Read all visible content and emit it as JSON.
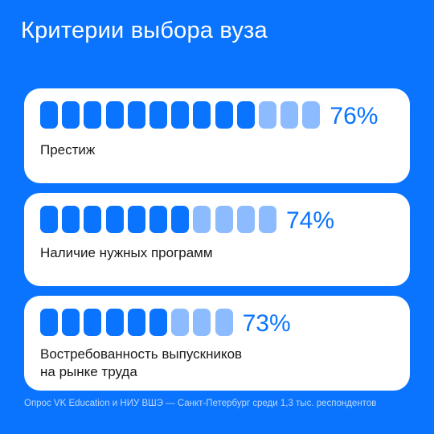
{
  "title": "Критерии выбора вуза",
  "colors": {
    "background": "#0a74ff",
    "bar_strong": "#0a74ff",
    "bar_light": "#8cbbff",
    "percent_text": "#0a74ff"
  },
  "chart_data": {
    "type": "bar",
    "categories": [
      "Престиж",
      "Наличие нужных программ",
      "Востребованность выпускников на рынке труда"
    ],
    "values": [
      76,
      74,
      73
    ],
    "value_labels": [
      "76%",
      "74%",
      "73%"
    ],
    "label_lines": [
      [
        "Престиж"
      ],
      [
        "Наличие нужных программ"
      ],
      [
        "Востребованность выпускников",
        "на рынке труда"
      ]
    ],
    "segments_total": [
      13,
      11,
      9
    ],
    "segments_strong": [
      10,
      7,
      6
    ]
  },
  "footer": "Опрос VK Education и НИУ ВШЭ — Санкт-Петербург среди 1,3 тыс. респондентов"
}
